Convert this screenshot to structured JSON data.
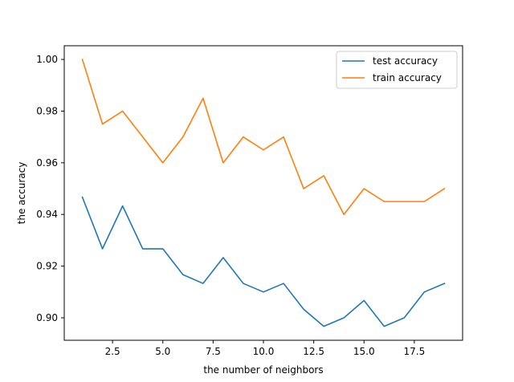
{
  "chart_data": {
    "type": "line",
    "xlabel": "the number of neighbors",
    "ylabel": "the accuracy",
    "xlim": [
      0.1,
      19.9
    ],
    "ylim": [
      0.8913,
      1.0053
    ],
    "xticks": [
      2.5,
      5.0,
      7.5,
      10.0,
      12.5,
      15.0,
      17.5
    ],
    "xtick_labels": [
      "2.5",
      "5.0",
      "7.5",
      "10.0",
      "12.5",
      "15.0",
      "17.5"
    ],
    "yticks": [
      0.9,
      0.92,
      0.94,
      0.96,
      0.98,
      1.0
    ],
    "ytick_labels": [
      "0.90",
      "0.92",
      "0.94",
      "0.96",
      "0.98",
      "1.00"
    ],
    "grid": false,
    "legend_position": "top-right",
    "x": [
      1,
      2,
      3,
      4,
      5,
      6,
      7,
      8,
      9,
      10,
      11,
      12,
      13,
      14,
      15,
      16,
      17,
      18,
      19
    ],
    "series": [
      {
        "name": "test accuracy",
        "color": "#1f77b4",
        "values": [
          0.9467,
          0.9267,
          0.9433,
          0.9267,
          0.9267,
          0.9167,
          0.9133,
          0.9233,
          0.9133,
          0.91,
          0.9133,
          0.9033,
          0.8967,
          0.9,
          0.9067,
          0.8967,
          0.9,
          0.91,
          0.9133
        ]
      },
      {
        "name": "train accuracy",
        "color": "#ff7f0e",
        "values": [
          1.0,
          0.975,
          0.98,
          0.97,
          0.96,
          0.97,
          0.985,
          0.96,
          0.97,
          0.965,
          0.97,
          0.95,
          0.955,
          0.94,
          0.95,
          0.945,
          0.945,
          0.945,
          0.95
        ]
      }
    ]
  }
}
